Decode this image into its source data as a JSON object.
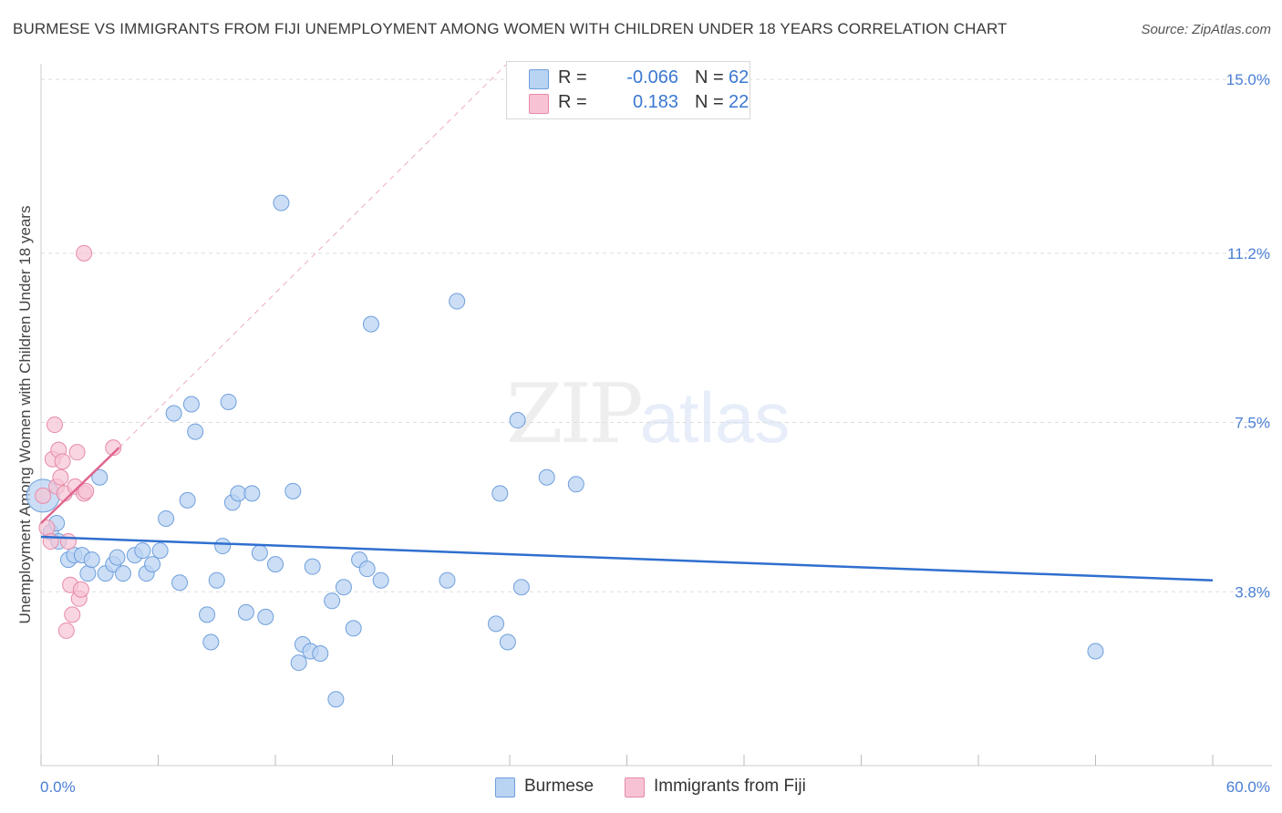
{
  "header": {
    "title": "BURMESE VS IMMIGRANTS FROM FIJI UNEMPLOYMENT AMONG WOMEN WITH CHILDREN UNDER 18 YEARS CORRELATION CHART",
    "source": "Source: ZipAtlas.com"
  },
  "watermark": {
    "part1": "ZIP",
    "part2": "atlas"
  },
  "legend": {
    "burmese": {
      "r_label": "R =",
      "r_value": "-0.066",
      "n_label": "N =",
      "n_value": "62"
    },
    "fiji": {
      "r_label": "R =",
      "r_value": "0.183",
      "n_label": "N =",
      "n_value": "22"
    }
  },
  "bottom_legend": {
    "burmese": "Burmese",
    "fiji": "Immigrants from Fiji"
  },
  "colors": {
    "burmese_fill": "#b9d3f3",
    "burmese_stroke": "#6f9fdc",
    "burmese_line": "#2f6fcf",
    "fiji_fill": "#f7c3d4",
    "fiji_stroke": "#e68aa8",
    "fiji_line": "#e0668e",
    "grid": "#dddddd",
    "tick_text": "#4a7fd4"
  },
  "chart_data": {
    "type": "scatter",
    "title": "BURMESE VS IMMIGRANTS FROM FIJI UNEMPLOYMENT AMONG WOMEN WITH CHILDREN UNDER 18 YEARS CORRELATION CHART",
    "xlabel": "",
    "ylabel": "Unemployment Among Women with Children Under 18 years",
    "xlim": [
      0,
      60
    ],
    "ylim": [
      0,
      15.5
    ],
    "x_tick_labels": [
      "0.0%",
      "60.0%"
    ],
    "y_ticks": [
      3.8,
      7.5,
      11.2,
      15.0
    ],
    "y_tick_labels": [
      "3.8%",
      "7.5%",
      "11.2%",
      "15.0%"
    ],
    "grid": true,
    "series": [
      {
        "name": "Burmese",
        "r": -0.066,
        "n": 62,
        "trend": {
          "x": [
            0,
            60
          ],
          "y": [
            5.0,
            4.05
          ]
        },
        "points": [
          {
            "x": 0.1,
            "y": 5.9,
            "big": true
          },
          {
            "x": 0.5,
            "y": 5.1
          },
          {
            "x": 0.8,
            "y": 5.3
          },
          {
            "x": 0.9,
            "y": 4.9
          },
          {
            "x": 1.4,
            "y": 4.5
          },
          {
            "x": 1.7,
            "y": 4.6
          },
          {
            "x": 2.1,
            "y": 4.6
          },
          {
            "x": 2.4,
            "y": 4.2
          },
          {
            "x": 2.6,
            "y": 4.5
          },
          {
            "x": 3.0,
            "y": 6.3
          },
          {
            "x": 3.3,
            "y": 4.2
          },
          {
            "x": 3.7,
            "y": 4.4
          },
          {
            "x": 3.9,
            "y": 4.55
          },
          {
            "x": 4.2,
            "y": 4.2
          },
          {
            "x": 4.8,
            "y": 4.6
          },
          {
            "x": 5.2,
            "y": 4.7
          },
          {
            "x": 5.4,
            "y": 4.2
          },
          {
            "x": 5.7,
            "y": 4.4
          },
          {
            "x": 6.1,
            "y": 4.7
          },
          {
            "x": 6.4,
            "y": 5.4
          },
          {
            "x": 6.8,
            "y": 7.7
          },
          {
            "x": 7.1,
            "y": 4.0
          },
          {
            "x": 7.5,
            "y": 5.8
          },
          {
            "x": 7.7,
            "y": 7.9
          },
          {
            "x": 7.9,
            "y": 7.3
          },
          {
            "x": 8.5,
            "y": 3.3
          },
          {
            "x": 8.7,
            "y": 2.7
          },
          {
            "x": 9.0,
            "y": 4.05
          },
          {
            "x": 9.3,
            "y": 4.8
          },
          {
            "x": 9.6,
            "y": 7.95
          },
          {
            "x": 9.8,
            "y": 5.75
          },
          {
            "x": 10.1,
            "y": 5.95
          },
          {
            "x": 10.5,
            "y": 3.35
          },
          {
            "x": 10.8,
            "y": 5.95
          },
          {
            "x": 11.2,
            "y": 4.65
          },
          {
            "x": 11.5,
            "y": 3.25
          },
          {
            "x": 12.0,
            "y": 4.4
          },
          {
            "x": 12.3,
            "y": 12.3
          },
          {
            "x": 12.9,
            "y": 6.0
          },
          {
            "x": 13.2,
            "y": 2.25
          },
          {
            "x": 13.4,
            "y": 2.65
          },
          {
            "x": 13.8,
            "y": 2.5
          },
          {
            "x": 13.9,
            "y": 4.35
          },
          {
            "x": 14.3,
            "y": 2.45
          },
          {
            "x": 14.9,
            "y": 3.6
          },
          {
            "x": 15.1,
            "y": 1.45
          },
          {
            "x": 15.5,
            "y": 3.9
          },
          {
            "x": 16.0,
            "y": 3.0
          },
          {
            "x": 16.3,
            "y": 4.5
          },
          {
            "x": 16.7,
            "y": 4.3
          },
          {
            "x": 16.9,
            "y": 9.65
          },
          {
            "x": 17.4,
            "y": 4.05
          },
          {
            "x": 20.8,
            "y": 4.05
          },
          {
            "x": 21.3,
            "y": 10.15
          },
          {
            "x": 23.3,
            "y": 3.1
          },
          {
            "x": 23.5,
            "y": 5.95
          },
          {
            "x": 23.9,
            "y": 2.7
          },
          {
            "x": 24.4,
            "y": 7.55
          },
          {
            "x": 24.6,
            "y": 3.9
          },
          {
            "x": 25.9,
            "y": 6.3
          },
          {
            "x": 27.4,
            "y": 6.15
          },
          {
            "x": 54.0,
            "y": 2.5
          }
        ]
      },
      {
        "name": "Immigrants from Fiji",
        "r": 0.183,
        "n": 22,
        "trend": {
          "x": [
            0,
            4.0
          ],
          "y": [
            5.3,
            6.95
          ]
        },
        "trend_ext": {
          "x": [
            4.0,
            24.0
          ],
          "y": [
            6.95,
            15.4
          ]
        },
        "points": [
          {
            "x": 0.1,
            "y": 5.9
          },
          {
            "x": 0.3,
            "y": 5.2
          },
          {
            "x": 0.5,
            "y": 4.9
          },
          {
            "x": 0.6,
            "y": 6.7
          },
          {
            "x": 0.7,
            "y": 7.45
          },
          {
            "x": 0.8,
            "y": 6.1
          },
          {
            "x": 0.9,
            "y": 6.9
          },
          {
            "x": 1.0,
            "y": 6.3
          },
          {
            "x": 1.1,
            "y": 6.65
          },
          {
            "x": 1.2,
            "y": 5.95
          },
          {
            "x": 1.3,
            "y": 2.95
          },
          {
            "x": 1.4,
            "y": 4.9
          },
          {
            "x": 1.5,
            "y": 3.95
          },
          {
            "x": 1.6,
            "y": 3.3
          },
          {
            "x": 1.75,
            "y": 6.1
          },
          {
            "x": 1.85,
            "y": 6.85
          },
          {
            "x": 1.95,
            "y": 3.65
          },
          {
            "x": 2.05,
            "y": 3.85
          },
          {
            "x": 2.2,
            "y": 5.95
          },
          {
            "x": 2.3,
            "y": 6.0
          },
          {
            "x": 2.2,
            "y": 11.2
          },
          {
            "x": 3.7,
            "y": 6.95
          }
        ]
      }
    ]
  }
}
